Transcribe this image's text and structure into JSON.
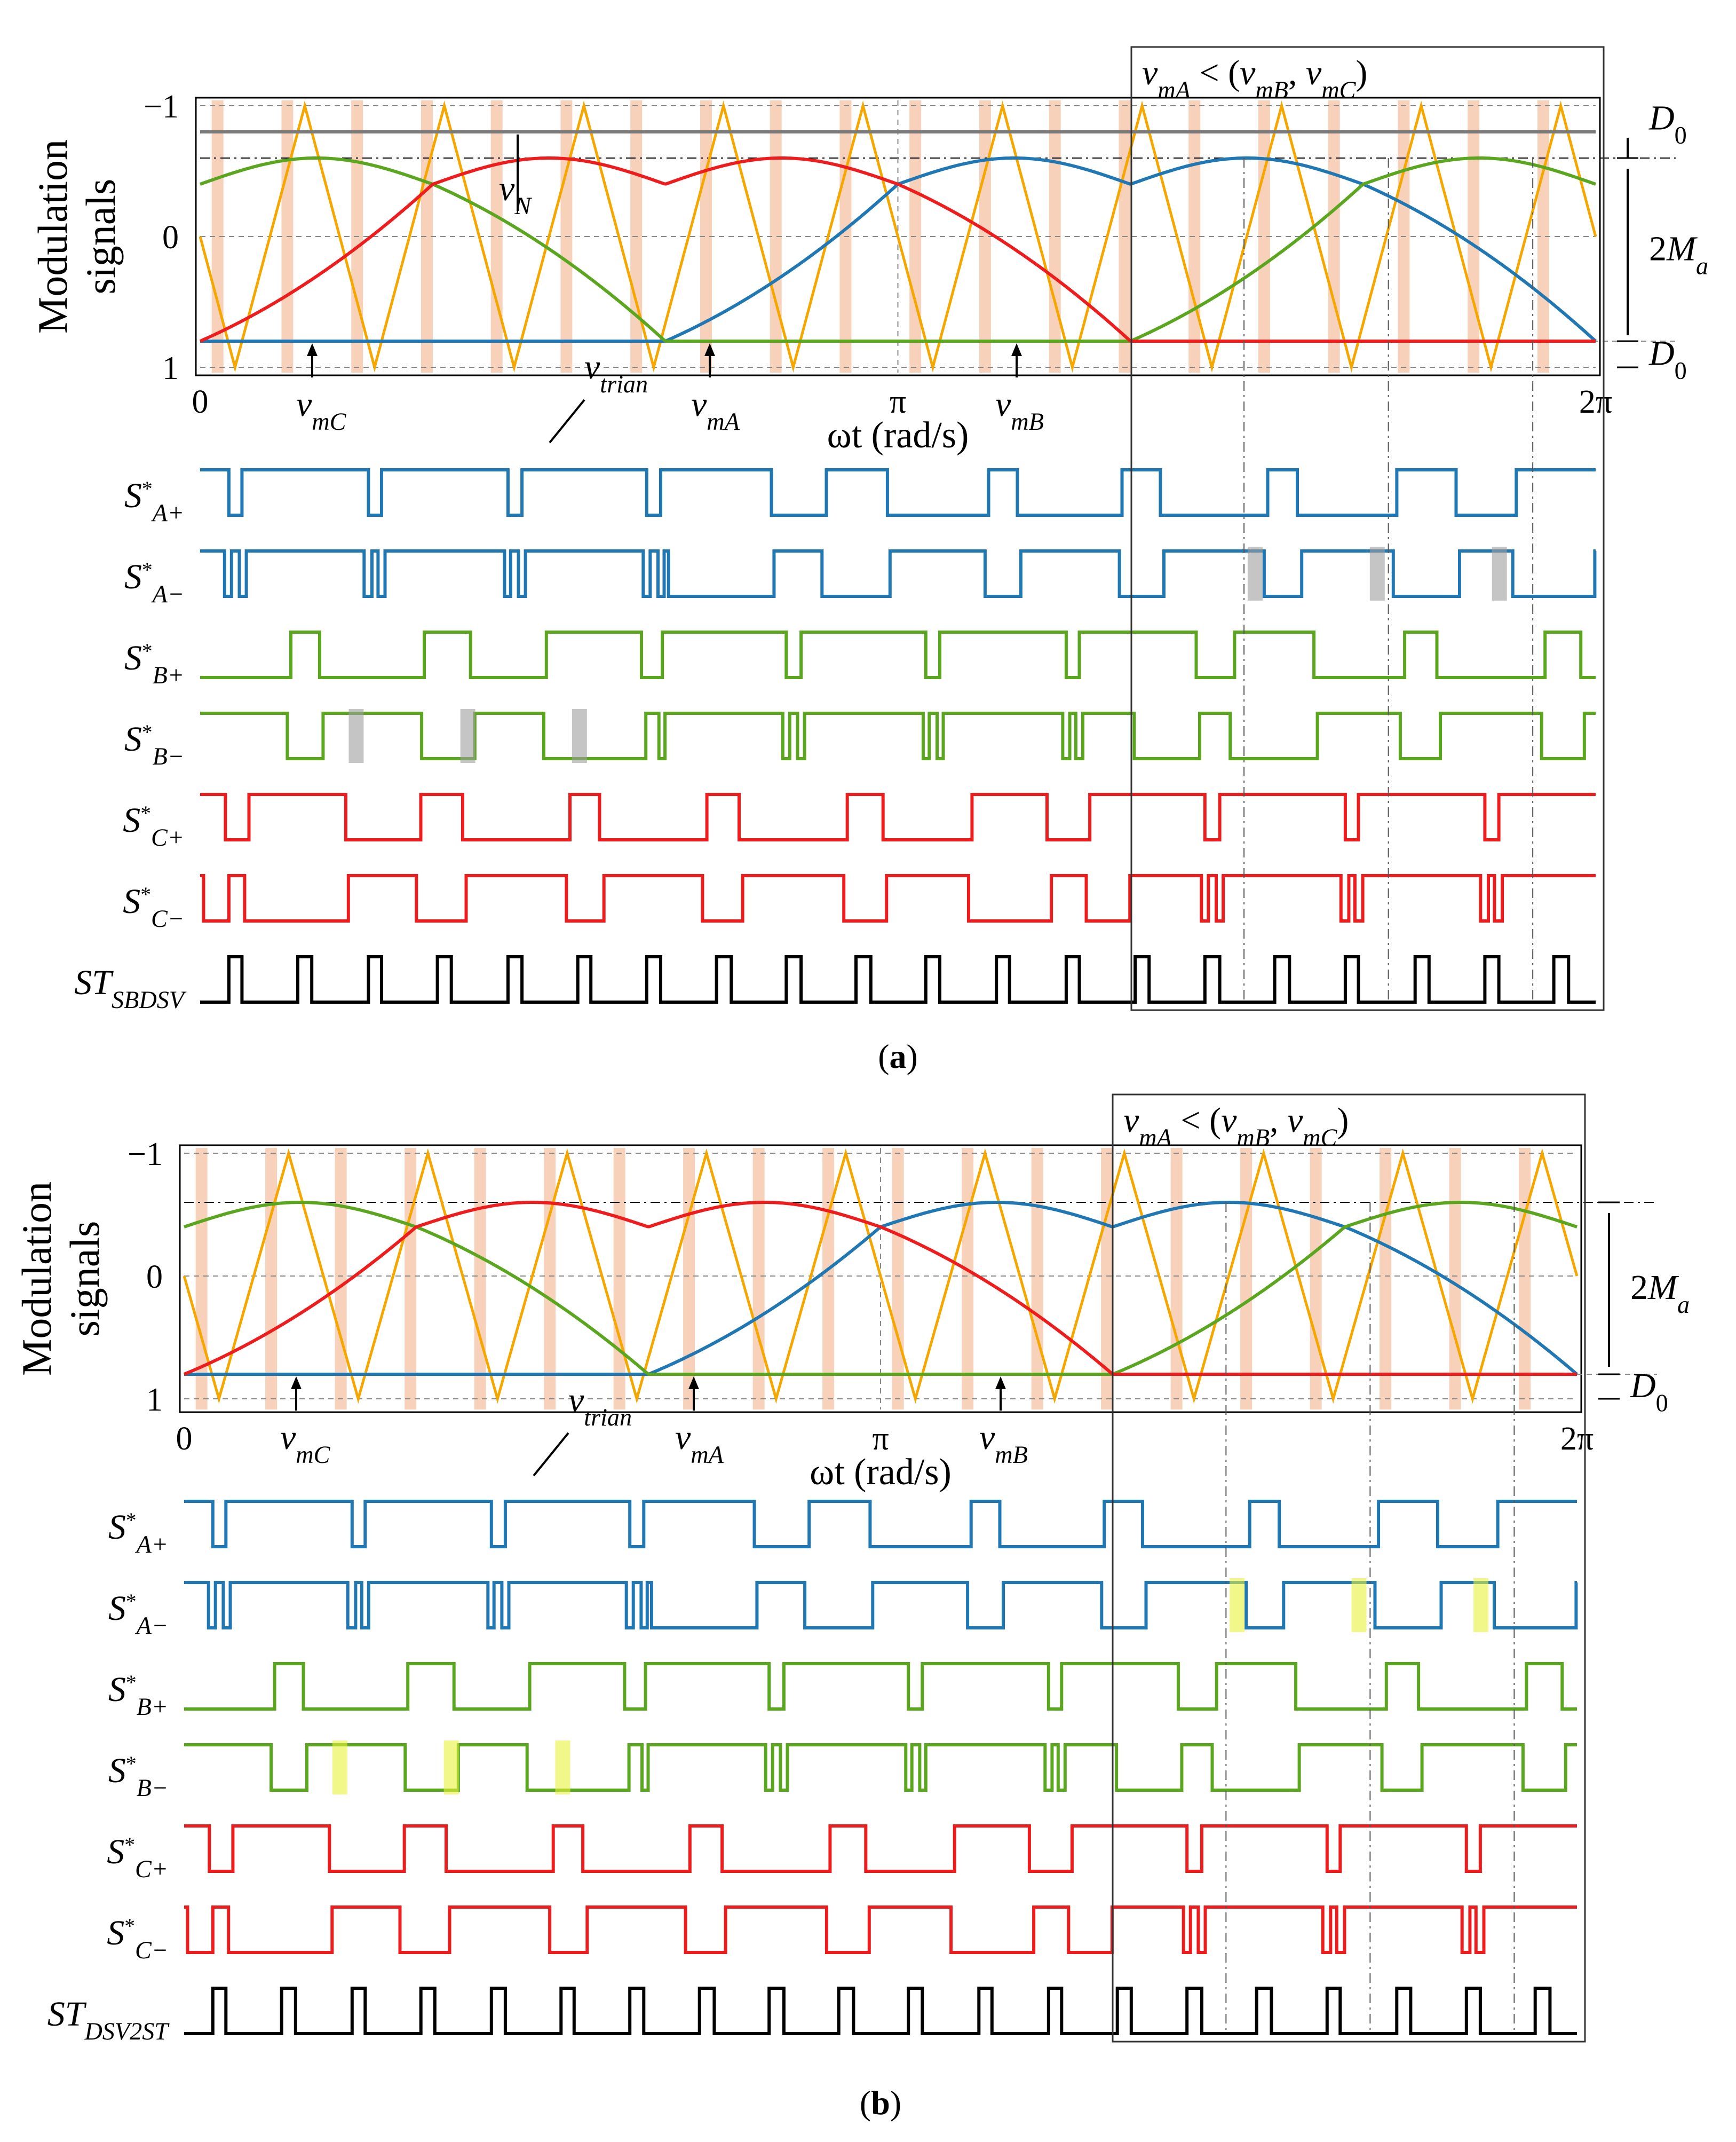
{
  "figure": {
    "colors": {
      "phase_a": "#1f77b4",
      "phase_b": "#5aa61e",
      "phase_c": "#ee1c1c",
      "carrier": "#f5a700",
      "st": "#000000",
      "band": "#f6c9ad",
      "gray_highlight": "#9e9e9e",
      "yellow_highlight": "#e8f23a",
      "vn_line": "#7a7a7a"
    },
    "panels": [
      {
        "id": "a",
        "label": "(a)",
        "label_letter": "a",
        "ylabel_line1": "Modulation",
        "ylabel_line2": "signals",
        "xlabel": "ωt (rad/s)",
        "xticks": [
          "0",
          "π",
          "2π"
        ],
        "yticks": [
          "1",
          "0",
          "−1"
        ],
        "box_condition": "vmA < (vmB, vmC)",
        "annotations": {
          "vmC": "vmC",
          "vtrian": "vtrian",
          "vmA": "vmA",
          "vmB": "vmB",
          "vN": "vN",
          "D0_top": "D0",
          "Ma": "2Ma",
          "D0_bottom": "D0"
        },
        "signals": [
          "S*A+",
          "S*A−",
          "S*B+",
          "S*B−",
          "S*C+",
          "S*C−",
          "STSBDSV"
        ],
        "highlight": "gray",
        "has_vn": true
      },
      {
        "id": "b",
        "label": "(b)",
        "label_letter": "b",
        "ylabel_line1": "Modulation",
        "ylabel_line2": "signals",
        "xlabel": "ωt (rad/s)",
        "xticks": [
          "0",
          "π",
          "2π"
        ],
        "yticks": [
          "1",
          "0",
          "−1"
        ],
        "box_condition": "vmA < (vmB, vmC)",
        "annotations": {
          "vmC": "vmC",
          "vtrian": "vtrian",
          "vmA": "vmA",
          "vmB": "vmB",
          "D0_top": "D0",
          "Ma": "2Ma"
        },
        "signals": [
          "S*A+",
          "S*A−",
          "S*B+",
          "S*B−",
          "S*C+",
          "S*C−",
          "STDSV2ST"
        ],
        "highlight": "yellow",
        "has_vn": false
      }
    ],
    "modulation": {
      "carrier_periods": 10,
      "ma": 0.7,
      "d0": 0.2,
      "peak": 0.8,
      "valley": -0.6,
      "vn_level": -0.8
    }
  }
}
